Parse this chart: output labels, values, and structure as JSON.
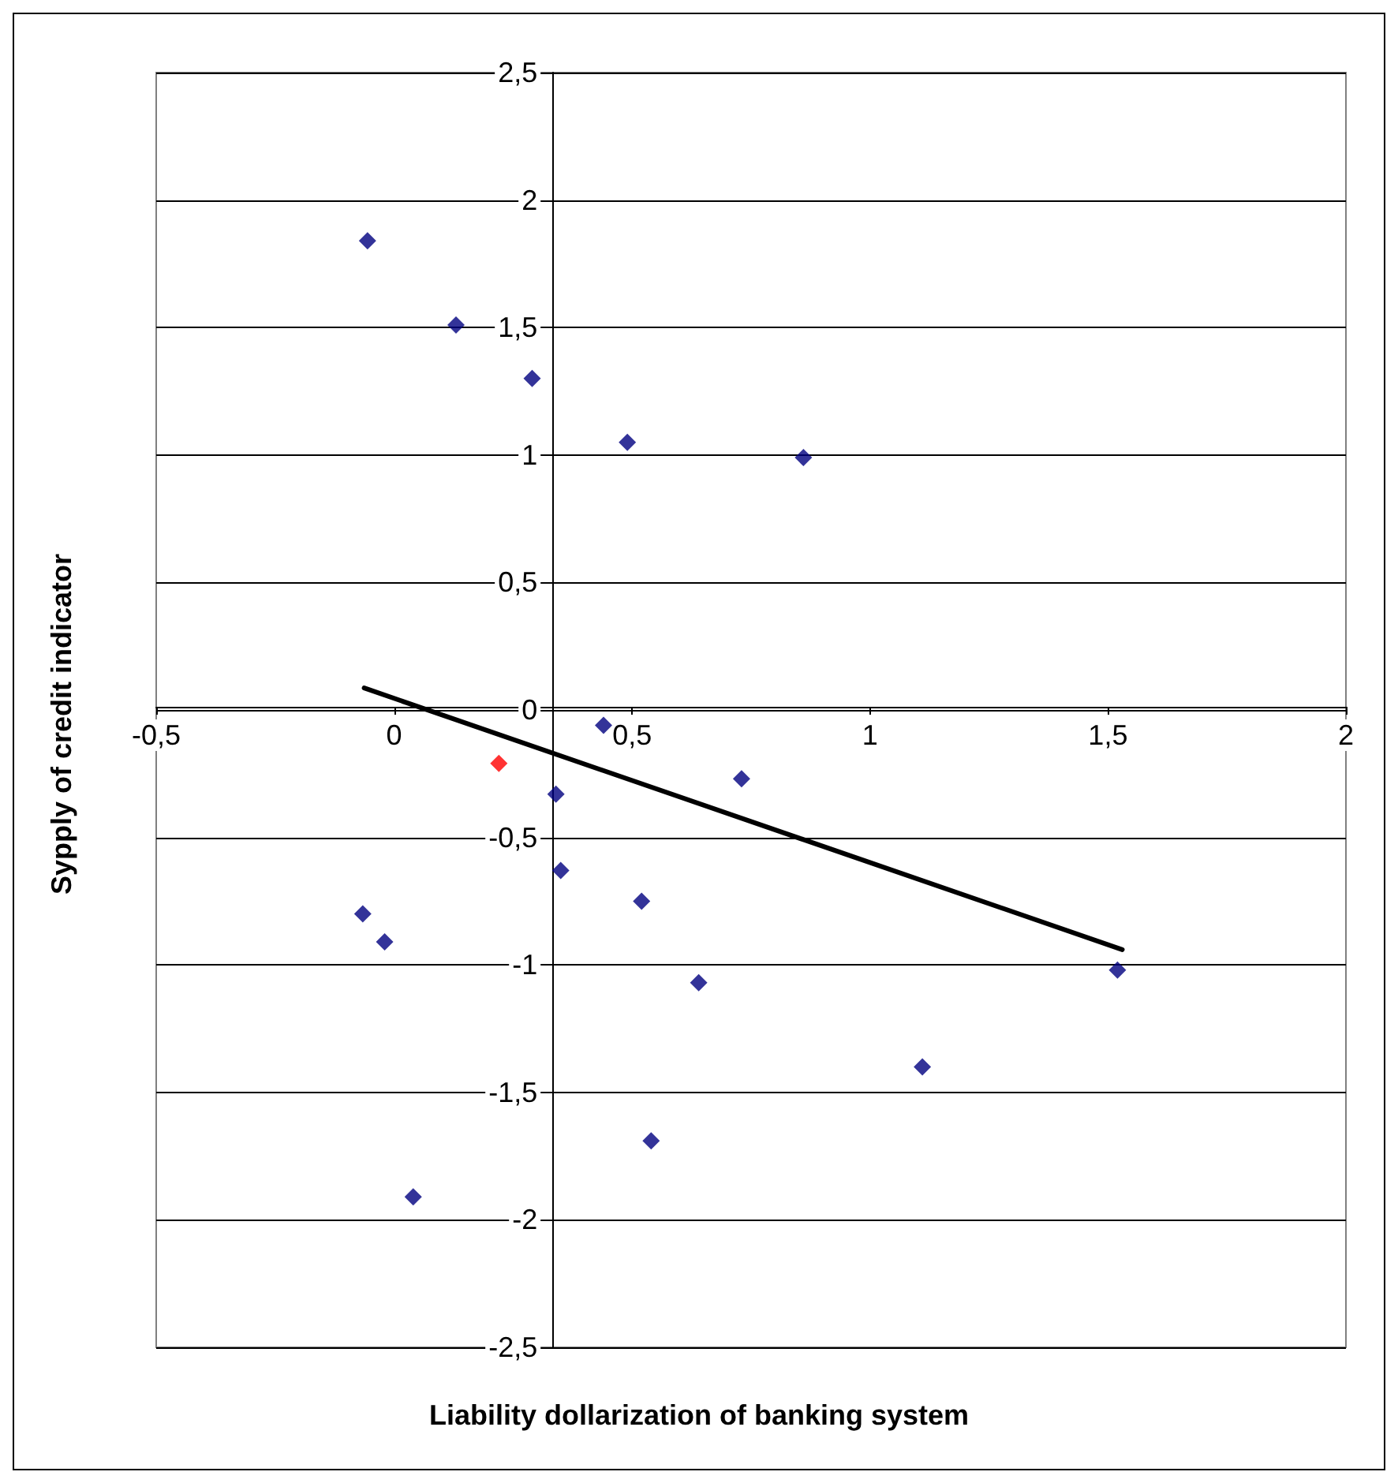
{
  "chart_data": {
    "type": "scatter",
    "xlabel": "Liability dollarization of banking system",
    "ylabel": "Sypply of credit indicator",
    "xlim": [
      -0.5,
      2
    ],
    "ylim": [
      -2.5,
      2.5
    ],
    "xticks": [
      {
        "value": -0.5,
        "label": "-0,5"
      },
      0,
      {
        "value": 0.5,
        "label": "0,5"
      },
      1,
      {
        "value": 1.5,
        "label": "1,5"
      },
      2
    ],
    "yticks": [
      {
        "value": -2.5,
        "label": "-2,5"
      },
      -2,
      {
        "value": -1.5,
        "label": "-1,5"
      },
      -1,
      {
        "value": -0.5,
        "label": "-0,5"
      },
      0,
      {
        "value": 0.5,
        "label": "0,5"
      },
      1,
      {
        "value": 1.5,
        "label": "1,5"
      },
      2,
      {
        "value": 2.5,
        "label": "2,5"
      }
    ],
    "grid": "y",
    "marker": "diamond",
    "series": [
      {
        "color": "#000080",
        "x": [
          -0.056,
          0.13,
          0.29,
          0.49,
          0.86,
          0.44,
          0.73,
          0.34,
          0.35,
          0.52,
          -0.066,
          -0.02,
          0.64,
          1.52,
          1.11,
          0.54,
          0.04
        ],
        "values": [
          1.84,
          1.51,
          1.3,
          1.05,
          0.99,
          -0.06,
          -0.27,
          -0.33,
          -0.63,
          -0.75,
          -0.8,
          -0.91,
          -1.07,
          -1.02,
          -1.4,
          -1.69,
          -1.91
        ]
      },
      {
        "color": "#ff0000",
        "x": [
          0.22
        ],
        "values": [
          -0.21
        ]
      },
      {
        "type": "line",
        "color": "#000000",
        "marker": "none",
        "line_style": "solid",
        "x": [
          -0.063,
          1.53
        ],
        "values": [
          0.086,
          -0.94
        ]
      }
    ]
  }
}
